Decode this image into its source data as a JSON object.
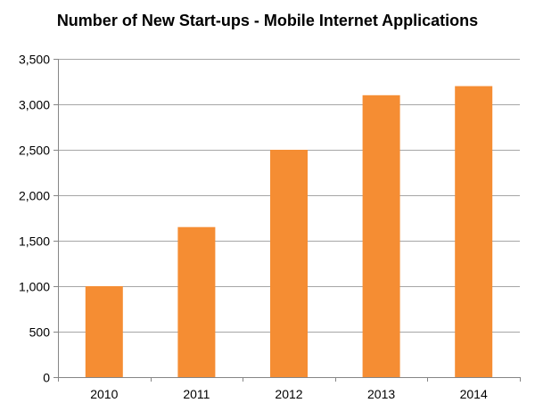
{
  "chart_data": {
    "type": "bar",
    "title": "Number of New Start-ups - Mobile Internet Applications",
    "categories": [
      "2010",
      "2011",
      "2012",
      "2013",
      "2014"
    ],
    "values": [
      1000,
      1650,
      2500,
      3100,
      3200
    ],
    "ylim": [
      0,
      3500
    ],
    "yticks": [
      0,
      500,
      1000,
      1500,
      2000,
      2500,
      3000,
      3500
    ],
    "ytick_labels": [
      "0",
      "500",
      "1,000",
      "1,500",
      "2,000",
      "2,500",
      "3,000",
      "3,500"
    ],
    "xlabel": "",
    "ylabel": "",
    "grid": true,
    "legend": "none",
    "colors": {
      "bar": "#F58D33",
      "grid": "#A6A6A6",
      "axis": "#868686"
    }
  }
}
